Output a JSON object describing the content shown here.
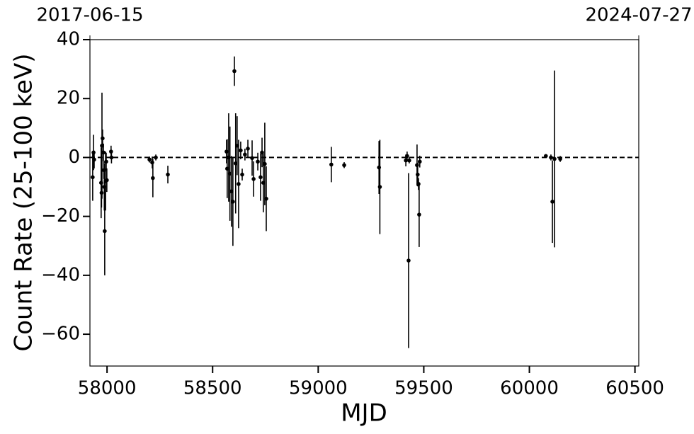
{
  "chart_data": {
    "type": "errorbar-scatter",
    "xlabel": "MJD",
    "ylabel": "Count Rate (25-100 keV)",
    "xlim": [
      57919,
      60518
    ],
    "ylim": [
      -70.8,
      40
    ],
    "xticks": [
      58000,
      58500,
      59000,
      59500,
      60000,
      60500
    ],
    "x2ticks": [
      {
        "value": 57919,
        "label": "2017-06-15"
      },
      {
        "value": 60518,
        "label": "2024-07-27"
      }
    ],
    "yticks": [
      {
        "value": -60,
        "label": "−60"
      },
      {
        "value": -40,
        "label": "−40"
      },
      {
        "value": -20,
        "label": "−20"
      },
      0,
      20,
      40
    ],
    "hline": 0,
    "color": "#000000",
    "x": [
      57932,
      57936,
      57939,
      57972,
      57974,
      57976,
      57979,
      57983,
      57985,
      57987,
      57989,
      57993,
      57996,
      57999,
      58019,
      58021,
      58201,
      58214,
      58217,
      58231,
      58288,
      58566,
      58569,
      58576,
      58582,
      58589,
      58596,
      58603,
      58609,
      58616,
      58623,
      58633,
      58640,
      58653,
      58667,
      58687,
      58694,
      58714,
      58727,
      58734,
      58740,
      58747,
      58754,
      59062,
      59123,
      59288,
      59292,
      59415,
      59421,
      59428,
      59431,
      59468,
      59471,
      59475,
      59478,
      59481,
      60078,
      60102,
      60109,
      60119,
      60146
    ],
    "values": [
      -6.7,
      1.7,
      -0.7,
      -8.6,
      -12,
      4,
      6.5,
      1.7,
      -4.3,
      -10,
      -25,
      -8,
      -1.4,
      -7.7,
      2,
      0,
      -0.7,
      -1.7,
      -7,
      0,
      -5.8,
      2,
      -3.8,
      0,
      -5.5,
      -11.5,
      -15,
      29.3,
      -2,
      4,
      -9,
      2.4,
      -5.8,
      1,
      3,
      -0.2,
      -7.3,
      -1.4,
      -6.7,
      1.7,
      -8.6,
      -2.2,
      -14,
      -2.4,
      -2.6,
      -3.4,
      -10,
      -1,
      0.5,
      -35,
      -1,
      -2.6,
      -5.8,
      -9,
      -19.4,
      -1.4,
      0.5,
      0,
      -15,
      -0.5,
      -0.5
    ],
    "errors": [
      8,
      6,
      3,
      12,
      5,
      18,
      3,
      3,
      3,
      8,
      15,
      10,
      3,
      4,
      2,
      2,
      1,
      2,
      6.5,
      1,
      3,
      4,
      10,
      15,
      16,
      12,
      15,
      5,
      17,
      10,
      15,
      3,
      2,
      2,
      3,
      6,
      6,
      3,
      8,
      5,
      10,
      14,
      11,
      6,
      1,
      9,
      16,
      2,
      1.5,
      29.7,
      1,
      7,
      4,
      2,
      11,
      2,
      0.5,
      1,
      14,
      30,
      1
    ]
  }
}
